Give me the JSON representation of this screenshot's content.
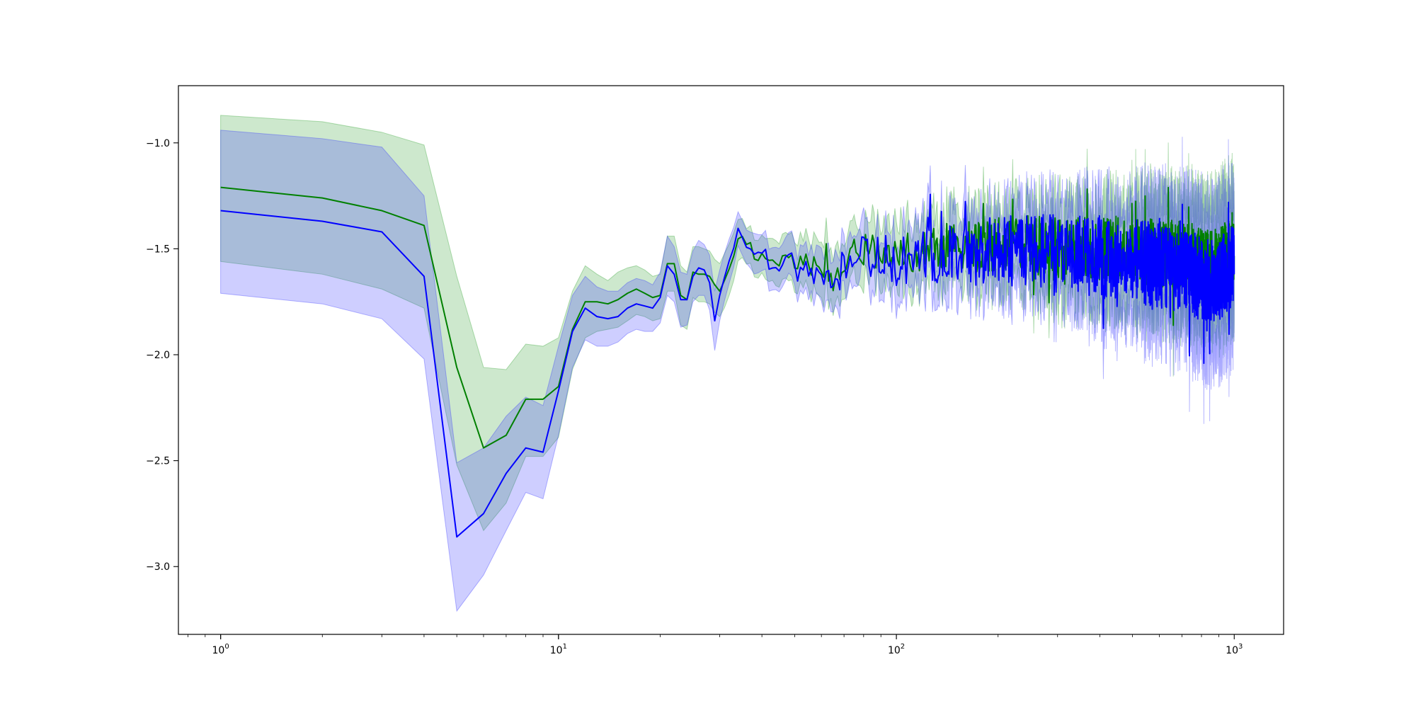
{
  "chart_data": {
    "type": "line",
    "title": "",
    "xlabel": "",
    "ylabel": "",
    "xscale": "log",
    "xlim": [
      0.75,
      1400
    ],
    "ylim": [
      -3.32,
      -0.73
    ],
    "grid": false,
    "legend": "none",
    "x_tick_labels": [
      {
        "value": 1,
        "base": "10",
        "exp": "0"
      },
      {
        "value": 10,
        "base": "10",
        "exp": "1"
      },
      {
        "value": 100,
        "base": "10",
        "exp": "2"
      },
      {
        "value": 1000,
        "base": "10",
        "exp": "3"
      }
    ],
    "y_tick_labels": [
      {
        "value": -1.0,
        "label": "−1.0"
      },
      {
        "value": -1.5,
        "label": "−1.5"
      },
      {
        "value": -2.0,
        "label": "−2.0"
      },
      {
        "value": -2.5,
        "label": "−2.5"
      },
      {
        "value": -3.0,
        "label": "−3.0"
      }
    ],
    "series": [
      {
        "color": "#008000",
        "band_color": "#2ca02c",
        "noise_amplitude": 0.16,
        "noise_seed": 7,
        "x": [
          1,
          2,
          3,
          4,
          5,
          6,
          7,
          8,
          9,
          10,
          11,
          12,
          13,
          14,
          15,
          16,
          17,
          18,
          19,
          20,
          21,
          22,
          23,
          24,
          25,
          26,
          27,
          28,
          29,
          30,
          32,
          34,
          36,
          38,
          40,
          45,
          50,
          55,
          60,
          65,
          70,
          80,
          90,
          100,
          120,
          150,
          200,
          300,
          400,
          500,
          600,
          700,
          800,
          900,
          1000
        ],
        "values": [
          -1.21,
          -1.26,
          -1.32,
          -1.39,
          -2.06,
          -2.44,
          -2.38,
          -2.21,
          -2.21,
          -2.15,
          -1.88,
          -1.75,
          -1.75,
          -1.76,
          -1.74,
          -1.71,
          -1.69,
          -1.71,
          -1.73,
          -1.72,
          -1.57,
          -1.57,
          -1.72,
          -1.74,
          -1.61,
          -1.62,
          -1.62,
          -1.63,
          -1.67,
          -1.7,
          -1.57,
          -1.45,
          -1.47,
          -1.52,
          -1.53,
          -1.55,
          -1.56,
          -1.57,
          -1.6,
          -1.63,
          -1.55,
          -1.5,
          -1.52,
          -1.53,
          -1.5,
          -1.49,
          -1.48,
          -1.5,
          -1.5,
          -1.51,
          -1.52,
          -1.53,
          -1.55,
          -1.56,
          -1.5
        ],
        "upper": [
          -0.87,
          -0.9,
          -0.95,
          -1.01,
          -1.63,
          -2.06,
          -2.07,
          -1.95,
          -1.96,
          -1.92,
          -1.7,
          -1.58,
          -1.62,
          -1.65,
          -1.61,
          -1.59,
          -1.58,
          -1.6,
          -1.63,
          -1.62,
          -1.44,
          -1.44,
          -1.58,
          -1.61,
          -1.49,
          -1.49,
          -1.5,
          -1.51,
          -1.55,
          -1.57,
          -1.45,
          -1.36,
          -1.39,
          -1.43,
          -1.44,
          -1.44,
          -1.45,
          -1.45,
          -1.47,
          -1.5,
          -1.42,
          -1.37,
          -1.38,
          -1.38,
          -1.35,
          -1.33,
          -1.31,
          -1.3,
          -1.29,
          -1.28,
          -1.28,
          -1.28,
          -1.29,
          -1.29,
          -1.2
        ],
        "lower": [
          -1.56,
          -1.62,
          -1.69,
          -1.78,
          -2.52,
          -2.83,
          -2.7,
          -2.48,
          -2.48,
          -2.39,
          -2.07,
          -1.92,
          -1.89,
          -1.88,
          -1.87,
          -1.84,
          -1.81,
          -1.82,
          -1.84,
          -1.83,
          -1.7,
          -1.7,
          -1.86,
          -1.88,
          -1.73,
          -1.75,
          -1.75,
          -1.76,
          -1.8,
          -1.82,
          -1.7,
          -1.55,
          -1.56,
          -1.61,
          -1.62,
          -1.66,
          -1.67,
          -1.69,
          -1.73,
          -1.76,
          -1.68,
          -1.63,
          -1.66,
          -1.68,
          -1.65,
          -1.65,
          -1.65,
          -1.7,
          -1.72,
          -1.75,
          -1.77,
          -1.79,
          -1.82,
          -1.84,
          -1.8
        ]
      },
      {
        "color": "#0000ff",
        "band_color": "#3333ff",
        "noise_amplitude": 0.2,
        "noise_seed": 19,
        "x": [
          1,
          2,
          3,
          4,
          5,
          6,
          7,
          8,
          9,
          10,
          11,
          12,
          13,
          14,
          15,
          16,
          17,
          18,
          19,
          20,
          21,
          22,
          23,
          24,
          25,
          26,
          27,
          28,
          29,
          30,
          32,
          34,
          36,
          38,
          40,
          45,
          50,
          55,
          60,
          65,
          70,
          80,
          90,
          100,
          120,
          150,
          200,
          300,
          400,
          500,
          600,
          700,
          800,
          900,
          1000
        ],
        "values": [
          -1.32,
          -1.37,
          -1.42,
          -1.63,
          -2.86,
          -2.75,
          -2.56,
          -2.44,
          -2.46,
          -2.17,
          -1.89,
          -1.78,
          -1.82,
          -1.83,
          -1.82,
          -1.78,
          -1.76,
          -1.77,
          -1.78,
          -1.73,
          -1.58,
          -1.62,
          -1.74,
          -1.74,
          -1.63,
          -1.59,
          -1.6,
          -1.66,
          -1.84,
          -1.72,
          -1.58,
          -1.44,
          -1.47,
          -1.56,
          -1.55,
          -1.57,
          -1.58,
          -1.6,
          -1.63,
          -1.66,
          -1.57,
          -1.52,
          -1.54,
          -1.56,
          -1.53,
          -1.52,
          -1.51,
          -1.53,
          -1.54,
          -1.56,
          -1.58,
          -1.6,
          -1.64,
          -1.66,
          -1.55
        ],
        "upper": [
          -0.94,
          -0.98,
          -1.02,
          -1.25,
          -2.51,
          -2.44,
          -2.29,
          -2.2,
          -2.24,
          -1.96,
          -1.72,
          -1.63,
          -1.68,
          -1.7,
          -1.7,
          -1.66,
          -1.64,
          -1.65,
          -1.67,
          -1.61,
          -1.44,
          -1.49,
          -1.61,
          -1.62,
          -1.51,
          -1.46,
          -1.48,
          -1.53,
          -1.7,
          -1.6,
          -1.47,
          -1.36,
          -1.39,
          -1.47,
          -1.46,
          -1.47,
          -1.48,
          -1.49,
          -1.51,
          -1.53,
          -1.45,
          -1.4,
          -1.41,
          -1.42,
          -1.38,
          -1.36,
          -1.34,
          -1.33,
          -1.32,
          -1.32,
          -1.32,
          -1.32,
          -1.34,
          -1.35,
          -1.25
        ],
        "lower": [
          -1.71,
          -1.76,
          -1.83,
          -2.02,
          -3.21,
          -3.04,
          -2.83,
          -2.65,
          -2.68,
          -2.38,
          -2.06,
          -1.93,
          -1.96,
          -1.96,
          -1.94,
          -1.9,
          -1.88,
          -1.89,
          -1.89,
          -1.85,
          -1.72,
          -1.75,
          -1.87,
          -1.86,
          -1.75,
          -1.72,
          -1.72,
          -1.79,
          -1.98,
          -1.84,
          -1.69,
          -1.52,
          -1.55,
          -1.65,
          -1.64,
          -1.67,
          -1.68,
          -1.71,
          -1.75,
          -1.79,
          -1.69,
          -1.64,
          -1.67,
          -1.7,
          -1.68,
          -1.68,
          -1.68,
          -1.73,
          -1.76,
          -1.8,
          -1.84,
          -1.88,
          -1.94,
          -1.97,
          -1.85
        ]
      }
    ]
  }
}
